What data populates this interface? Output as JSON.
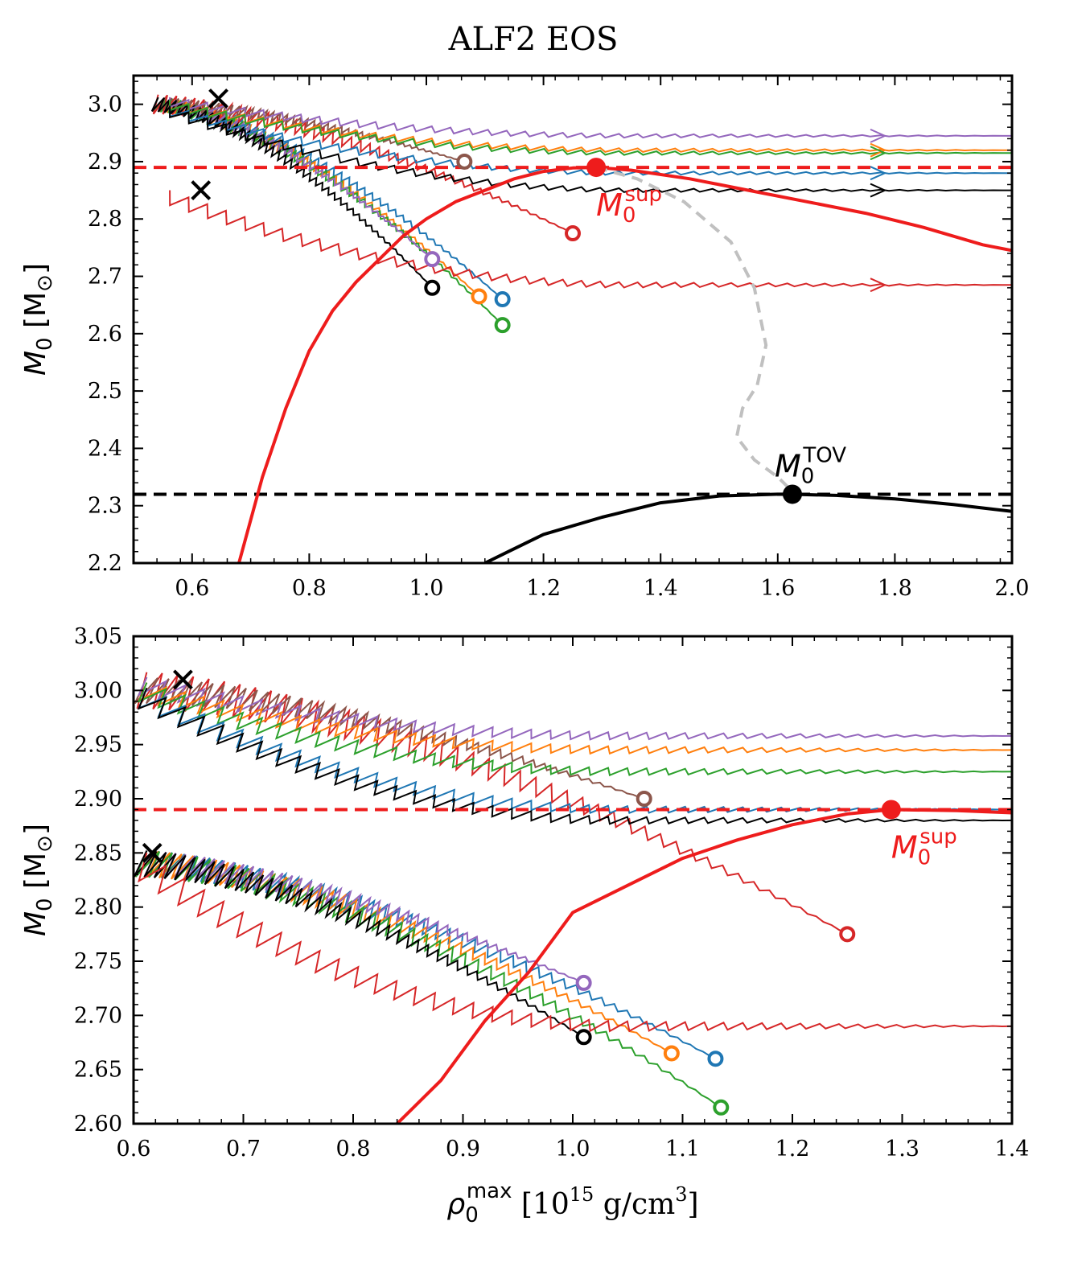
{
  "figure_title": "ALF2 EOS",
  "colors": {
    "red": "#ee1c1c",
    "black": "#000000",
    "grey": "#c0c0c0",
    "blue": "#1f77b4",
    "orange": "#ff7f0e",
    "green": "#2ca02c",
    "trackred": "#d62728",
    "purple": "#9467bd",
    "brown": "#8c564b"
  },
  "chart_data": [
    {
      "type": "line",
      "panel": "top",
      "xlim": [
        0.5,
        2.0
      ],
      "ylim": [
        2.2,
        3.05
      ],
      "xticks": [
        "0.6",
        "0.8",
        "1.0",
        "1.2",
        "1.4",
        "1.6",
        "1.8",
        "2.0"
      ],
      "yticks": [
        "2.2",
        "2.3",
        "2.4",
        "2.5",
        "2.6",
        "2.7",
        "2.8",
        "2.9",
        "3.0"
      ],
      "xlabel": "",
      "ylabel": {
        "base": "M",
        "sub": "0",
        "unit": " [M",
        "unit_sub": "⊙",
        "close": "]"
      },
      "reference_lines": [
        {
          "name": "M0_sup_level",
          "y": 2.89,
          "color": "red",
          "style": "dashed"
        },
        {
          "name": "M0_TOV_level",
          "y": 2.32,
          "color": "black",
          "style": "dashed"
        }
      ],
      "curves": [
        {
          "name": "supramassive-limit",
          "color": "red",
          "width": 4,
          "x": [
            0.68,
            0.72,
            0.76,
            0.8,
            0.84,
            0.88,
            0.92,
            0.96,
            1.0,
            1.05,
            1.1,
            1.15,
            1.2,
            1.25,
            1.29,
            1.35,
            1.45,
            1.55,
            1.65,
            1.75,
            1.85,
            1.95,
            2.0
          ],
          "y": [
            2.2,
            2.35,
            2.47,
            2.57,
            2.64,
            2.69,
            2.73,
            2.77,
            2.8,
            2.83,
            2.85,
            2.87,
            2.883,
            2.889,
            2.89,
            2.885,
            2.87,
            2.85,
            2.83,
            2.81,
            2.785,
            2.755,
            2.745
          ]
        },
        {
          "name": "tov-sequence",
          "color": "black",
          "width": 4,
          "x": [
            1.1,
            1.2,
            1.3,
            1.4,
            1.5,
            1.6,
            1.62,
            1.7,
            1.8,
            1.9,
            2.0
          ],
          "y": [
            2.2,
            2.25,
            2.28,
            2.305,
            2.317,
            2.32,
            2.32,
            2.318,
            2.312,
            2.302,
            2.29
          ]
        },
        {
          "name": "sup-to-tov-connector",
          "color": "grey",
          "width": 4,
          "dash": "14,9",
          "x": [
            1.29,
            1.36,
            1.44,
            1.52,
            1.56,
            1.58,
            1.565,
            1.54,
            1.53,
            1.56,
            1.6,
            1.63
          ],
          "y": [
            2.89,
            2.87,
            2.83,
            2.76,
            2.68,
            2.58,
            2.51,
            2.47,
            2.42,
            2.38,
            2.35,
            2.32
          ]
        }
      ],
      "points": [
        {
          "name": "M0-sup-point",
          "x": 1.29,
          "y": 2.89,
          "color": "red",
          "label": "M",
          "label_sub": "0",
          "label_sup": "sup",
          "label_pos": "below"
        },
        {
          "name": "M0-TOV-point",
          "x": 1.625,
          "y": 2.32,
          "color": "black",
          "label": "M",
          "label_sub": "0",
          "label_sup": "TOV",
          "label_pos": "above"
        }
      ],
      "crosses": [
        {
          "x": 0.645,
          "y": 3.01
        },
        {
          "x": 0.615,
          "y": 2.85
        }
      ],
      "tracks": [
        {
          "color": "blue",
          "start": [
            0.53,
            3.0
          ],
          "end": [
            1.13,
            2.66
          ],
          "collapse": false
        },
        {
          "color": "orange",
          "start": [
            0.53,
            3.0
          ],
          "end": [
            1.09,
            2.665
          ],
          "collapse": false
        },
        {
          "color": "green",
          "start": [
            0.53,
            3.0
          ],
          "end": [
            1.13,
            2.615
          ],
          "collapse": false
        },
        {
          "color": "trackred",
          "start": [
            0.53,
            3.0
          ],
          "end": [
            1.25,
            2.775
          ],
          "collapse": false
        },
        {
          "color": "purple",
          "start": [
            0.53,
            3.0
          ],
          "end": [
            1.01,
            2.73
          ],
          "collapse": false
        },
        {
          "color": "brown",
          "start": [
            0.53,
            3.0
          ],
          "end": [
            1.065,
            2.9
          ],
          "collapse": false
        },
        {
          "color": "black",
          "start": [
            0.53,
            3.0
          ],
          "end": [
            1.01,
            2.68
          ],
          "collapse": false
        },
        {
          "color": "purple",
          "start": [
            0.55,
            3.005
          ],
          "end": [
            2.0,
            2.945
          ],
          "collapse": true
        },
        {
          "color": "orange",
          "start": [
            0.55,
            3.0
          ],
          "end": [
            2.0,
            2.92
          ],
          "collapse": true
        },
        {
          "color": "green",
          "start": [
            0.55,
            3.0
          ],
          "end": [
            2.0,
            2.915
          ],
          "collapse": true
        },
        {
          "color": "blue",
          "start": [
            0.55,
            2.99
          ],
          "end": [
            2.0,
            2.88
          ],
          "collapse": true
        },
        {
          "color": "black",
          "start": [
            0.55,
            2.99
          ],
          "end": [
            2.0,
            2.85
          ],
          "collapse": true
        },
        {
          "color": "trackred",
          "start": [
            0.55,
            2.84
          ],
          "end": [
            2.0,
            2.685
          ],
          "collapse": true
        }
      ]
    },
    {
      "type": "line",
      "panel": "bottom",
      "xlim": [
        0.6,
        1.4
      ],
      "ylim": [
        2.6,
        3.05
      ],
      "xticks": [
        "0.6",
        "0.7",
        "0.8",
        "0.9",
        "1.0",
        "1.1",
        "1.2",
        "1.3",
        "1.4"
      ],
      "yticks": [
        "2.60",
        "2.65",
        "2.70",
        "2.75",
        "2.80",
        "2.85",
        "2.90",
        "2.95",
        "3.00",
        "3.05"
      ],
      "xlabel": {
        "base": "ρ",
        "sub": "0",
        "sup": "max",
        "unit": " [10",
        "unit_sup": "15",
        "unit_tail": " g/cm",
        "unit_sup2": "3",
        "close": "]"
      },
      "ylabel": {
        "base": "M",
        "sub": "0",
        "unit": " [M",
        "unit_sub": "⊙",
        "close": "]"
      },
      "reference_lines": [
        {
          "name": "M0_sup_level",
          "y": 2.89,
          "color": "red",
          "style": "dashed"
        }
      ],
      "curves": [
        {
          "name": "supramassive-limit",
          "color": "red",
          "width": 4,
          "x": [
            0.84,
            0.88,
            0.92,
            0.96,
            1.0,
            1.05,
            1.1,
            1.15,
            1.2,
            1.25,
            1.29,
            1.35,
            1.4
          ],
          "y": [
            2.6,
            2.64,
            2.695,
            2.74,
            2.795,
            2.82,
            2.845,
            2.862,
            2.876,
            2.886,
            2.89,
            2.889,
            2.887
          ]
        }
      ],
      "points": [
        {
          "name": "M0-sup-point",
          "x": 1.29,
          "y": 2.89,
          "color": "red",
          "label": "M",
          "label_sub": "0",
          "label_sup": "sup",
          "label_pos": "below"
        }
      ],
      "crosses": [
        {
          "x": 0.645,
          "y": 3.01
        },
        {
          "x": 0.617,
          "y": 2.85
        }
      ],
      "tracks": [
        {
          "color": "blue",
          "start": [
            0.6,
            2.84
          ],
          "end": [
            1.13,
            2.66
          ],
          "collapse": false
        },
        {
          "color": "orange",
          "start": [
            0.6,
            2.84
          ],
          "end": [
            1.09,
            2.665
          ],
          "collapse": false
        },
        {
          "color": "green",
          "start": [
            0.6,
            2.84
          ],
          "end": [
            1.135,
            2.615
          ],
          "collapse": false
        },
        {
          "color": "trackred",
          "start": [
            0.6,
            3.0
          ],
          "end": [
            1.25,
            2.775
          ],
          "collapse": false
        },
        {
          "color": "purple",
          "start": [
            0.6,
            2.84
          ],
          "end": [
            1.01,
            2.73
          ],
          "collapse": false
        },
        {
          "color": "brown",
          "start": [
            0.6,
            3.0
          ],
          "end": [
            1.065,
            2.9
          ],
          "collapse": false
        },
        {
          "color": "black",
          "start": [
            0.6,
            2.84
          ],
          "end": [
            1.01,
            2.68
          ],
          "collapse": false
        },
        {
          "color": "purple",
          "start": [
            0.6,
            3.005
          ],
          "end": [
            1.4,
            2.958
          ],
          "collapse": true
        },
        {
          "color": "orange",
          "start": [
            0.6,
            3.0
          ],
          "end": [
            1.4,
            2.945
          ],
          "collapse": true
        },
        {
          "color": "green",
          "start": [
            0.6,
            3.0
          ],
          "end": [
            1.4,
            2.925
          ],
          "collapse": true
        },
        {
          "color": "blue",
          "start": [
            0.6,
            2.995
          ],
          "end": [
            1.4,
            2.89
          ],
          "collapse": true
        },
        {
          "color": "black",
          "start": [
            0.6,
            2.995
          ],
          "end": [
            1.4,
            2.88
          ],
          "collapse": true
        },
        {
          "color": "trackred",
          "start": [
            0.6,
            2.84
          ],
          "end": [
            1.4,
            2.69
          ],
          "collapse": true
        }
      ]
    }
  ]
}
